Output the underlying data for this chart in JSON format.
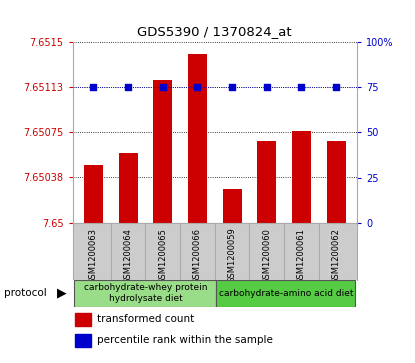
{
  "title": "GDS5390 / 1370824_at",
  "samples": [
    "GSM1200063",
    "GSM1200064",
    "GSM1200065",
    "GSM1200066",
    "GSM1200059",
    "GSM1200060",
    "GSM1200061",
    "GSM1200062"
  ],
  "bar_values": [
    7.65048,
    7.65058,
    7.65118,
    7.6514,
    7.65028,
    7.65068,
    7.65076,
    7.65068
  ],
  "percentile_values": [
    75,
    75,
    75,
    75,
    75,
    75,
    75,
    75
  ],
  "ylim_left": [
    7.65,
    7.6515
  ],
  "ylim_right": [
    0,
    100
  ],
  "yticks_left": [
    7.65,
    7.65038,
    7.65075,
    7.65113,
    7.6515
  ],
  "yticks_right": [
    0,
    25,
    50,
    75,
    100
  ],
  "ytick_labels_left": [
    "7.65",
    "7.65038",
    "7.65075",
    "7.65113",
    "7.6515"
  ],
  "ytick_labels_right": [
    "0",
    "25",
    "50",
    "75",
    "100%"
  ],
  "bar_color": "#cc0000",
  "dot_color": "#0000cc",
  "grid_color": "#000000",
  "bg_plot": "#ffffff",
  "bg_xtick": "#cccccc",
  "group1_label": "carbohydrate-whey protein\nhydrolysate diet",
  "group2_label": "carbohydrate-amino acid diet",
  "group1_color": "#99dd88",
  "group2_color": "#55cc44",
  "legend_bar_label": "transformed count",
  "legend_dot_label": "percentile rank within the sample",
  "protocol_label": "protocol"
}
